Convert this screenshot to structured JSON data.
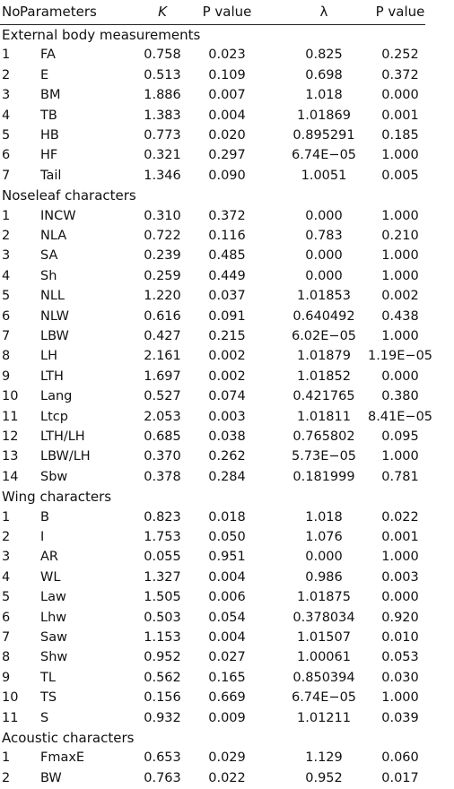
{
  "table": {
    "header": [
      "No",
      "Parameters",
      "K",
      "P value",
      "λ",
      "P value"
    ],
    "sections": [
      {
        "title": "External body measurements",
        "rows": [
          [
            "1",
            "FA",
            "0.758",
            "0.023",
            "0.825",
            "0.252"
          ],
          [
            "2",
            "E",
            "0.513",
            "0.109",
            "0.698",
            "0.372"
          ],
          [
            "3",
            "BM",
            "1.886",
            "0.007",
            "1.018",
            "0.000"
          ],
          [
            "4",
            "TB",
            "1.383",
            "0.004",
            "1.01869",
            "0.001"
          ],
          [
            "5",
            "HB",
            "0.773",
            "0.020",
            "0.895291",
            "0.185"
          ],
          [
            "6",
            "HF",
            "0.321",
            "0.297",
            "6.74E−05",
            "1.000"
          ],
          [
            "7",
            "Tail",
            "1.346",
            "0.090",
            "1.0051",
            "0.005"
          ]
        ]
      },
      {
        "title": "Noseleaf characters",
        "rows": [
          [
            "1",
            "INCW",
            "0.310",
            "0.372",
            "0.000",
            "1.000"
          ],
          [
            "2",
            "NLA",
            "0.722",
            "0.116",
            "0.783",
            "0.210"
          ],
          [
            "3",
            "SA",
            "0.239",
            "0.485",
            "0.000",
            "1.000"
          ],
          [
            "4",
            "Sh",
            "0.259",
            "0.449",
            "0.000",
            "1.000"
          ],
          [
            "5",
            "NLL",
            "1.220",
            "0.037",
            "1.01853",
            "0.002"
          ],
          [
            "6",
            "NLW",
            "0.616",
            "0.091",
            "0.640492",
            "0.438"
          ],
          [
            "7",
            "LBW",
            "0.427",
            "0.215",
            "6.02E−05",
            "1.000"
          ],
          [
            "8",
            "LH",
            "2.161",
            "0.002",
            "1.01879",
            "1.19E−05"
          ],
          [
            "9",
            "LTH",
            "1.697",
            "0.002",
            "1.01852",
            "0.000"
          ],
          [
            "10",
            "Lang",
            "0.527",
            "0.074",
            "0.421765",
            "0.380"
          ],
          [
            "11",
            "Ltcp",
            "2.053",
            "0.003",
            "1.01811",
            "8.41E−05"
          ],
          [
            "12",
            "LTH/LH",
            "0.685",
            "0.038",
            "0.765802",
            "0.095"
          ],
          [
            "13",
            "LBW/LH",
            "0.370",
            "0.262",
            "5.73E−05",
            "1.000"
          ],
          [
            "14",
            "Sbw",
            "0.378",
            "0.284",
            "0.181999",
            "0.781"
          ]
        ]
      },
      {
        "title": "Wing characters",
        "rows": [
          [
            "1",
            "B",
            "0.823",
            "0.018",
            "1.018",
            "0.022"
          ],
          [
            "2",
            "I",
            "1.753",
            "0.050",
            "1.076",
            "0.001"
          ],
          [
            "3",
            "AR",
            "0.055",
            "0.951",
            "0.000",
            "1.000"
          ],
          [
            "4",
            "WL",
            "1.327",
            "0.004",
            "0.986",
            "0.003"
          ],
          [
            "5",
            "Law",
            "1.505",
            "0.006",
            "1.01875",
            "0.000"
          ],
          [
            "6",
            "Lhw",
            "0.503",
            "0.054",
            "0.378034",
            "0.920"
          ],
          [
            "7",
            "Saw",
            "1.153",
            "0.004",
            "1.01507",
            "0.010"
          ],
          [
            "8",
            "Shw",
            "0.952",
            "0.027",
            "1.00061",
            "0.053"
          ],
          [
            "9",
            "TL",
            "0.562",
            "0.165",
            "0.850394",
            "0.030"
          ],
          [
            "10",
            "TS",
            "0.156",
            "0.669",
            "6.74E−05",
            "1.000"
          ],
          [
            "11",
            "S",
            "0.932",
            "0.009",
            "1.01211",
            "0.039"
          ]
        ]
      },
      {
        "title": "Acoustic characters",
        "rows": [
          [
            "1",
            "FmaxE",
            "0.653",
            "0.029",
            "1.129",
            "0.060"
          ],
          [
            "2",
            "BW",
            "0.763",
            "0.022",
            "0.952",
            "0.017"
          ]
        ]
      }
    ]
  }
}
